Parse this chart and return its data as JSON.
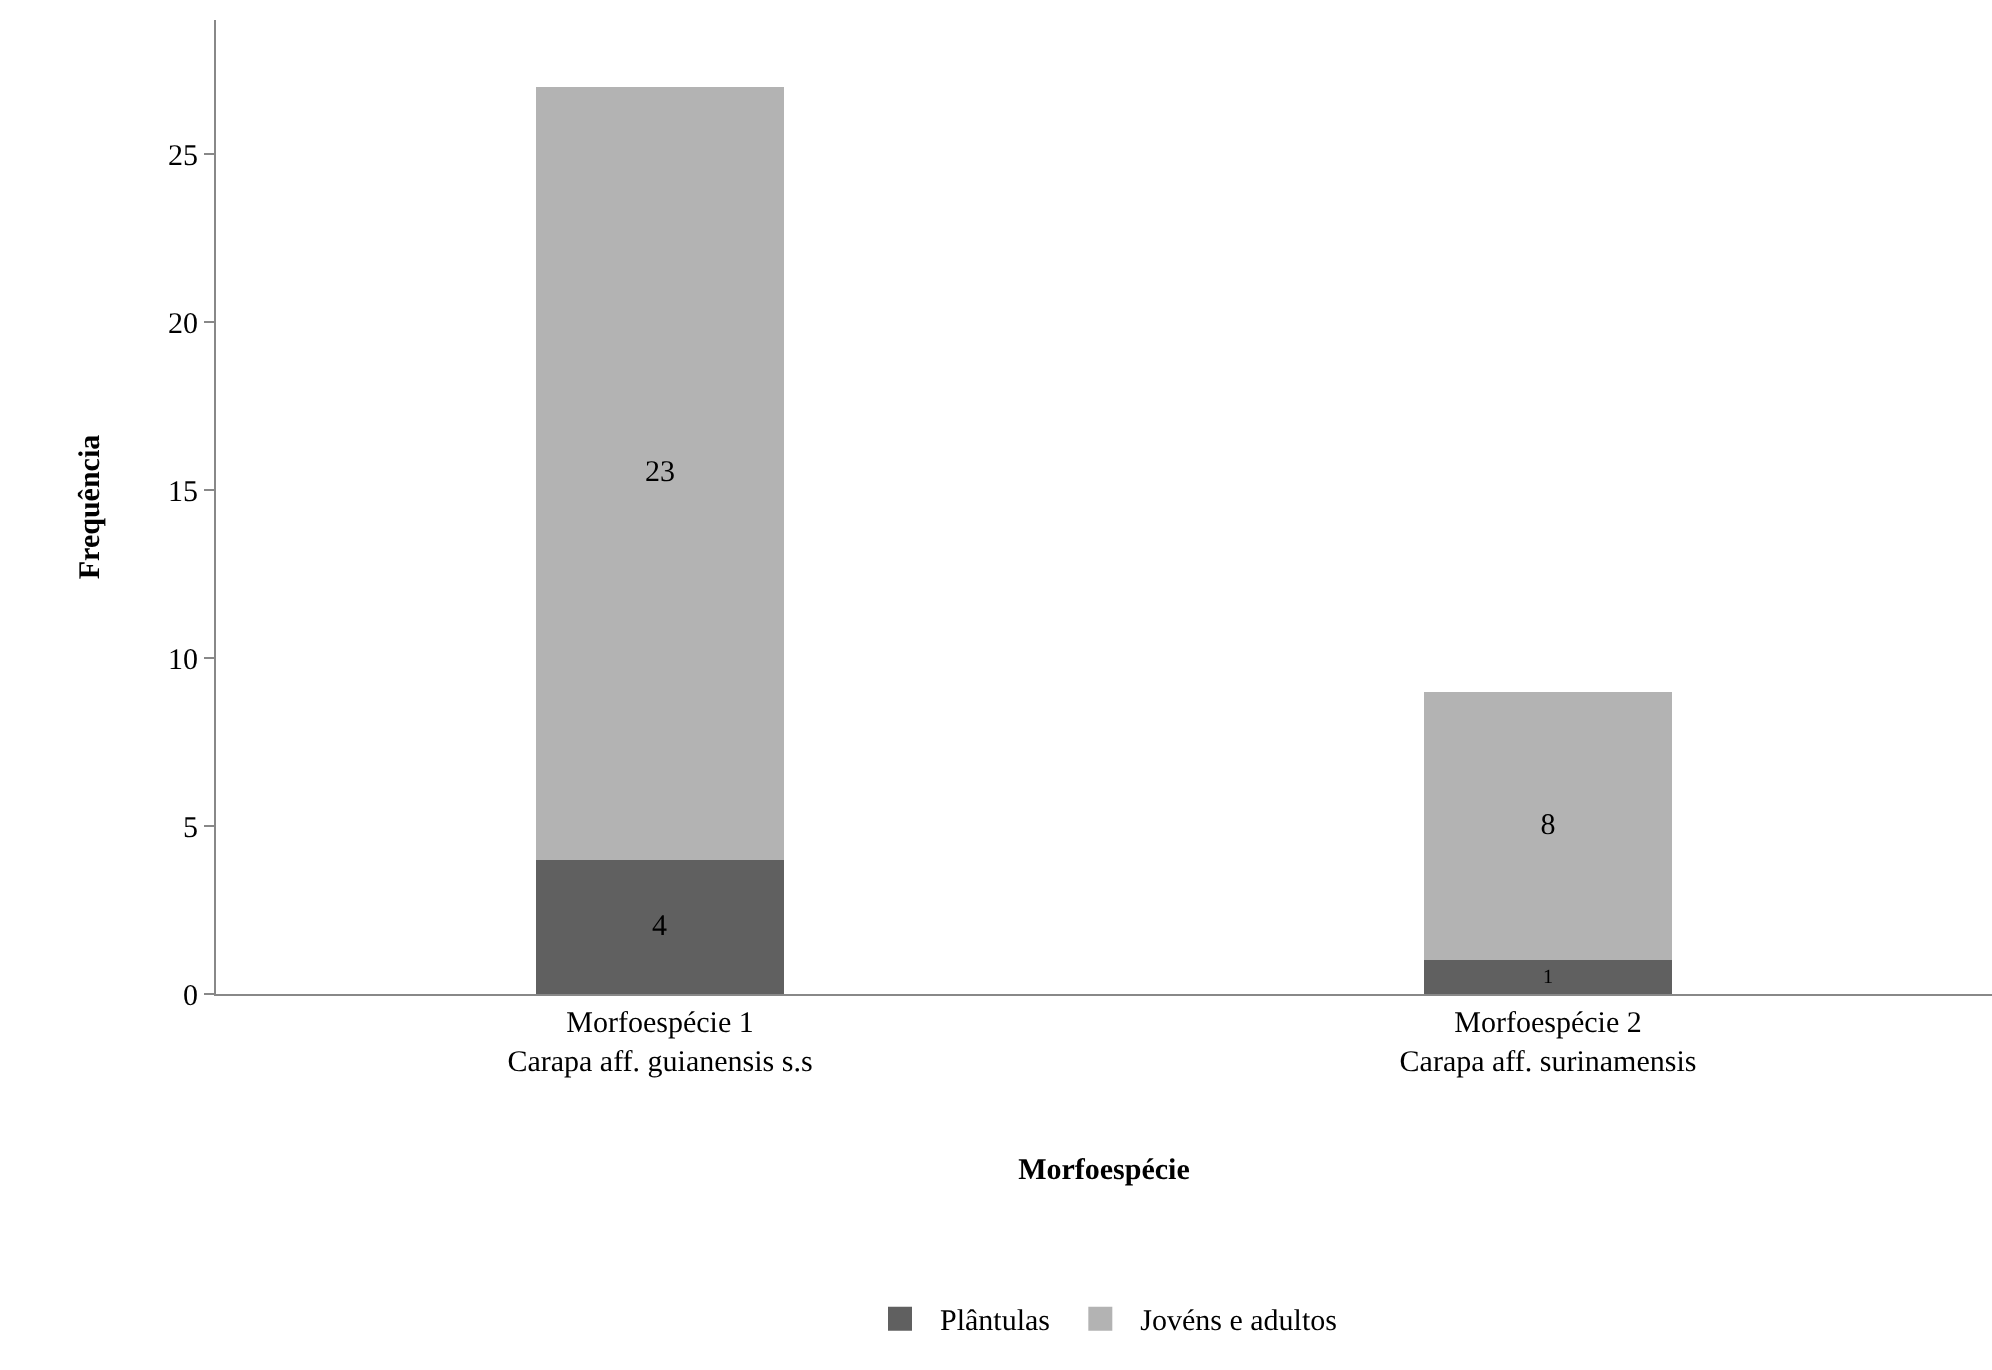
{
  "chart_data": {
    "type": "bar",
    "stacked": true,
    "xlabel": "Morfoespécie",
    "ylabel": "Frequência",
    "categories": [
      "Morfoespécie 1\nCarapa aff. guianensis s.s",
      "Morfoespécie 2\nCarapa aff. surinamensis"
    ],
    "series": [
      {
        "name": "Plântulas",
        "color": "#606060",
        "values": [
          4,
          1
        ]
      },
      {
        "name": "Jovéns e adultos",
        "color": "#b3b3b3",
        "values": [
          23,
          8
        ]
      }
    ],
    "ylim": [
      0,
      29
    ],
    "yticks": [
      0,
      5,
      10,
      15,
      20,
      25
    ],
    "grid": false,
    "legend": "bottom",
    "data_labels": true
  }
}
